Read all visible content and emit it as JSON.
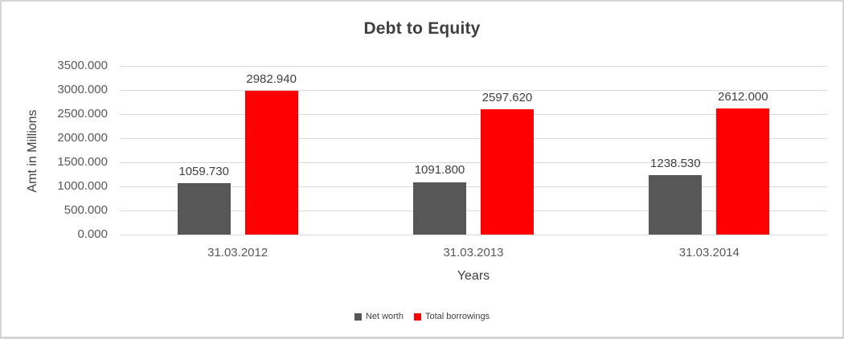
{
  "chart_data": {
    "type": "bar",
    "title": "Debt to Equity",
    "xlabel": "Years",
    "ylabel": "Amt in Millions",
    "categories": [
      "31.03.2012",
      "31.03.2013",
      "31.03.2014"
    ],
    "series": [
      {
        "name": "Net worth",
        "color": "#575757",
        "values": [
          1059.73,
          1091.8,
          1238.53
        ],
        "labels": [
          "1059.730",
          "1091.800",
          "1238.530"
        ]
      },
      {
        "name": "Total borrowings",
        "color": "#ff0000",
        "values": [
          2982.94,
          2597.62,
          2612.0
        ],
        "labels": [
          "2982.940",
          "2597.620",
          "2612.000"
        ]
      }
    ],
    "ylim": [
      0,
      3500
    ],
    "ytick_step": 500,
    "ytick_labels": [
      "0.000",
      "500.000",
      "1000.000",
      "1500.000",
      "2000.000",
      "2500.000",
      "3000.000",
      "3500.000"
    ],
    "grid": true,
    "gridline_color": "#d9d9d9",
    "legend_position": "bottom"
  }
}
